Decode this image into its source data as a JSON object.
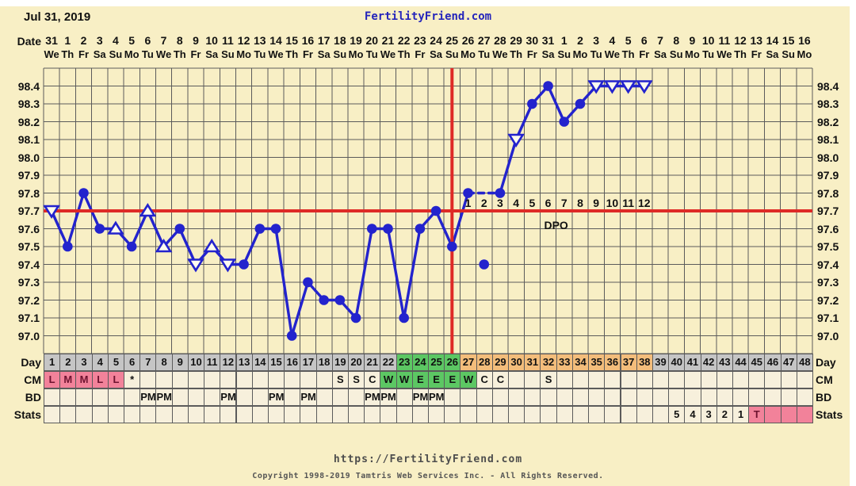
{
  "colors": {
    "background": "#F8EFC5",
    "cell_cream": "#F7F0DC",
    "phase_gray": "#C5C5C5",
    "phase_green": "#5CC763",
    "phase_orange": "#F3BD7B",
    "pink": "#F2829A",
    "line_blue": "#2323CD",
    "red": "#DE2A26",
    "grid": "#5B5B5B",
    "brand_blue": "#2525BB",
    "menses_text": "#6E1330"
  },
  "header": {
    "date_title": "Jul 31, 2019",
    "brand": "FertilityFriend.com"
  },
  "axis": {
    "date_label": "Date",
    "dates": [
      "31",
      "1",
      "2",
      "3",
      "4",
      "5",
      "6",
      "7",
      "8",
      "9",
      "10",
      "11",
      "12",
      "13",
      "14",
      "15",
      "16",
      "17",
      "18",
      "19",
      "20",
      "21",
      "22",
      "23",
      "24",
      "25",
      "26",
      "27",
      "28",
      "29",
      "30",
      "31",
      "1",
      "2",
      "3",
      "4",
      "5",
      "6",
      "7",
      "8",
      "9",
      "10",
      "11",
      "12",
      "13",
      "14",
      "15",
      "16"
    ],
    "weekdays": [
      "We",
      "Th",
      "Fr",
      "Sa",
      "Su",
      "Mo",
      "Tu",
      "We",
      "Th",
      "Fr",
      "Sa",
      "Su",
      "Mo",
      "Tu",
      "We",
      "Th",
      "Fr",
      "Sa",
      "Su",
      "Mo",
      "Tu",
      "We",
      "Th",
      "Fr",
      "Sa",
      "Su",
      "Mo",
      "Tu",
      "We",
      "Th",
      "Fr",
      "Sa",
      "Su",
      "Mo",
      "Tu",
      "We",
      "Th",
      "Fr",
      "Sa",
      "Su",
      "Mo",
      "Tu",
      "We",
      "Th",
      "Fr",
      "Sa",
      "Su",
      "Mo"
    ],
    "temp_labels": [
      "98.4",
      "98.3",
      "98.2",
      "98.1",
      "98.0",
      "97.9",
      "97.8",
      "97.7",
      "97.6",
      "97.5",
      "97.4",
      "97.3",
      "97.2",
      "97.1",
      "97.0"
    ]
  },
  "chart_data": {
    "type": "line",
    "title": "Basal body temperature chart",
    "x_label": "Cycle day",
    "ylim": [
      96.9,
      98.5
    ],
    "coverline": 97.7,
    "ovulation_day": 26,
    "days": [
      1,
      2,
      3,
      4,
      5,
      6,
      7,
      8,
      9,
      10,
      11,
      12,
      13,
      14,
      15,
      16,
      17,
      18,
      19,
      20,
      21,
      22,
      23,
      24,
      25,
      26,
      27,
      28,
      29,
      30,
      31,
      32,
      33,
      34,
      35,
      36,
      37,
      38,
      39,
      40,
      41,
      42,
      43,
      44,
      45,
      46,
      47,
      48
    ],
    "temps": [
      97.7,
      97.5,
      97.8,
      97.6,
      97.6,
      97.5,
      97.7,
      97.5,
      97.6,
      97.4,
      97.5,
      97.4,
      97.4,
      97.6,
      97.6,
      97.0,
      97.3,
      97.2,
      97.2,
      97.1,
      97.6,
      97.6,
      97.1,
      97.6,
      97.7,
      97.5,
      97.8,
      97.4,
      97.8,
      98.1,
      98.3,
      98.4,
      98.2,
      98.3,
      98.4,
      98.4,
      98.4,
      98.4,
      null,
      null,
      null,
      null,
      null,
      null,
      null,
      null,
      null,
      null
    ],
    "markers": [
      "tri-down",
      "dot",
      "dot",
      "dot",
      "tri-up",
      "dot",
      "tri-up",
      "tri-up",
      "dot",
      "tri-down",
      "tri-up",
      "tri-down",
      "dot",
      "dot",
      "dot",
      "dot",
      "dot",
      "dot",
      "dot",
      "dot",
      "dot",
      "dot",
      "dot",
      "dot",
      "dot",
      "dot",
      "dot",
      "dot",
      "dot",
      "tri-down",
      "dot",
      "dot",
      "dot",
      "dot",
      "tri-down",
      "tri-down",
      "tri-down",
      "tri-down",
      null,
      null,
      null,
      null,
      null,
      null,
      null,
      null,
      null,
      null
    ],
    "discarded_days": [
      28
    ],
    "dashed_segments": [
      [
        27,
        29
      ]
    ],
    "dpo": {
      "start_day": 27,
      "labels": [
        "1",
        "2",
        "3",
        "4",
        "5",
        "6",
        "7",
        "8",
        "9",
        "10",
        "11",
        "12"
      ],
      "caption": "DPO"
    }
  },
  "rows": {
    "day": {
      "label": "Day",
      "numbers": [
        "1",
        "2",
        "3",
        "4",
        "5",
        "6",
        "7",
        "8",
        "9",
        "10",
        "11",
        "12",
        "13",
        "14",
        "15",
        "16",
        "17",
        "18",
        "19",
        "20",
        "21",
        "22",
        "23",
        "24",
        "25",
        "26",
        "27",
        "28",
        "29",
        "30",
        "31",
        "32",
        "33",
        "34",
        "35",
        "36",
        "37",
        "38",
        "39",
        "40",
        "41",
        "42",
        "43",
        "44",
        "45",
        "46",
        "47",
        "48"
      ],
      "phase_ranges": [
        {
          "from": 1,
          "to": 22,
          "color": "gray"
        },
        {
          "from": 23,
          "to": 26,
          "color": "green"
        },
        {
          "from": 27,
          "to": 38,
          "color": "orange"
        },
        {
          "from": 39,
          "to": 48,
          "color": "gray"
        }
      ]
    },
    "cm": {
      "label": "CM",
      "entries": [
        {
          "day": 1,
          "text": "L"
        },
        {
          "day": 2,
          "text": "M"
        },
        {
          "day": 3,
          "text": "M"
        },
        {
          "day": 4,
          "text": "L"
        },
        {
          "day": 5,
          "text": "L"
        },
        {
          "day": 6,
          "text": "*"
        },
        {
          "day": 19,
          "text": "S"
        },
        {
          "day": 20,
          "text": "S"
        },
        {
          "day": 21,
          "text": "C"
        },
        {
          "day": 22,
          "text": "W"
        },
        {
          "day": 23,
          "text": "W"
        },
        {
          "day": 24,
          "text": "E"
        },
        {
          "day": 25,
          "text": "E"
        },
        {
          "day": 26,
          "text": "E"
        },
        {
          "day": 27,
          "text": "W"
        },
        {
          "day": 28,
          "text": "C"
        },
        {
          "day": 29,
          "text": "C"
        },
        {
          "day": 32,
          "text": "S"
        }
      ],
      "pink_range": [
        1,
        5
      ],
      "green_range": [
        22,
        27
      ]
    },
    "bd": {
      "label": "BD",
      "symbol": "PM",
      "days": [
        7,
        8,
        12,
        15,
        17,
        21,
        22,
        24,
        25
      ]
    },
    "stats": {
      "label": "Stats",
      "entries": [
        {
          "day": 40,
          "text": "5"
        },
        {
          "day": 41,
          "text": "4"
        },
        {
          "day": 42,
          "text": "3"
        },
        {
          "day": 43,
          "text": "2"
        },
        {
          "day": 44,
          "text": "1"
        },
        {
          "day": 45,
          "text": "T"
        }
      ],
      "pink_range": [
        45,
        48
      ]
    }
  },
  "footer": {
    "url": "https://FertilityFriend.com",
    "copyright": "Copyright 1998-2019 Tamtris Web Services Inc. - All Rights Reserved."
  }
}
